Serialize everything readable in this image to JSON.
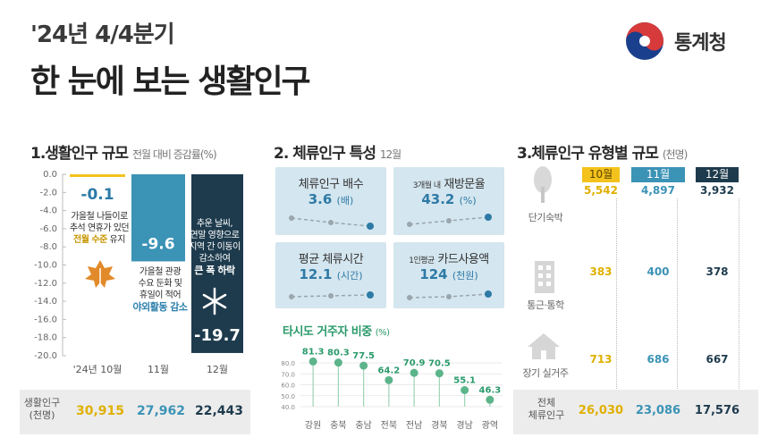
{
  "header": {
    "subtitle": "'24년 4/4분기",
    "title": "한 눈에 보는 생활인구",
    "brand": "통계청"
  },
  "colors": {
    "oct": "#f4c21c",
    "nov": "#3b93b6",
    "dec": "#1e3b4d",
    "card": "#d4e6ef",
    "green": "#5cb48a"
  },
  "section1": {
    "title": "1.생활인구 규모",
    "note": "전월 대비 증감률(%)",
    "desc_oct": [
      "가을철 나들이로",
      "추석 연휴가 있던",
      "전월 수준",
      "유지"
    ],
    "desc_nov": [
      "가을철 관광",
      "수요 둔화 및",
      "휴일이 적어",
      "야외활동 감소"
    ],
    "desc_dec": [
      "추운 날씨,",
      "연말 영향으로",
      "지역 간 이동이",
      "감소하여",
      "큰 폭 하락"
    ],
    "footer_label": [
      "생활인구",
      "(천명)"
    ],
    "footer_values": [
      "30,915",
      "27,962",
      "22,443"
    ]
  },
  "section2": {
    "title": "2. 체류인구 특성",
    "note": "12월",
    "cards": [
      {
        "title": "체류인구 배수",
        "prefix": "",
        "value": "3.6",
        "unit": "(배)"
      },
      {
        "title": "재방문율",
        "prefix": "3개월 내",
        "value": "43.2",
        "unit": "(%)"
      },
      {
        "title": "평균 체류시간",
        "prefix": "",
        "value": "12.1",
        "unit": "(시간)"
      },
      {
        "title": "카드사용액",
        "prefix": "1인평균",
        "value": "124",
        "unit": "(천원)"
      }
    ],
    "lollipop_title": "타시도 거주자 비중",
    "lollipop_unit": "(%)"
  },
  "section3": {
    "title": "3.체류인구 유형별 규모",
    "note": "(천명)",
    "months": [
      "10월",
      "11월",
      "12월"
    ],
    "rows": [
      {
        "label": "단기숙박",
        "values": [
          "5,542",
          "4,897",
          "3,932"
        ]
      },
      {
        "label": "통근·통학",
        "values": [
          "383",
          "400",
          "378"
        ]
      },
      {
        "label": "장기 실거주",
        "values": [
          "713",
          "686",
          "667"
        ]
      }
    ],
    "total_label": [
      "전체",
      "체류인구"
    ],
    "total_values": [
      "26,030",
      "23,086",
      "17,576"
    ]
  },
  "chart_data": [
    {
      "type": "bar",
      "title": "1.생활인구 규모",
      "subtitle": "전월 대비 증감률(%)",
      "categories": [
        "'24년 10월",
        "11월",
        "12월"
      ],
      "values": [
        -0.1,
        -9.6,
        -19.7
      ],
      "value_labels": [
        "-0.1",
        "-9.6",
        "-19.7"
      ],
      "ylim": [
        -20.0,
        0.0
      ],
      "yticks": [
        "0.0",
        "-2.0",
        "-4.0",
        "-6.0",
        "-8.0",
        "-10.0",
        "-12.0",
        "-14.0",
        "-16.0",
        "-18.0",
        "-20.0"
      ],
      "colors": [
        "#f4c21c",
        "#3b93b6",
        "#1e3b4d"
      ]
    },
    {
      "type": "scatter",
      "title": "타시도 거주자 비중",
      "ylabel": "(%)",
      "categories": [
        "강원",
        "충북",
        "충남",
        "전북",
        "전남",
        "경북",
        "경남",
        "광역"
      ],
      "values": [
        81.3,
        80.3,
        77.5,
        64.2,
        70.9,
        70.5,
        55.1,
        46.3
      ],
      "value_labels": [
        "81.3",
        "80.3",
        "77.5",
        "64.2",
        "70.9",
        "70.5",
        "55.1",
        "46.3"
      ],
      "ylim": [
        40.0,
        80.0
      ],
      "yticks": [
        "80.0",
        "70.0",
        "60.0",
        "50.0",
        "40.0"
      ]
    }
  ]
}
